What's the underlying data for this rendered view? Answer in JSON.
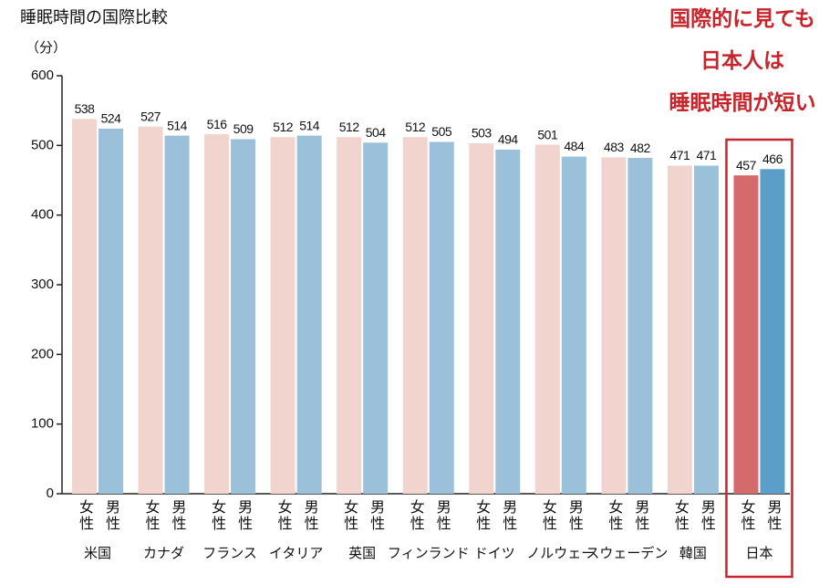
{
  "chart_data": {
    "type": "bar",
    "title": "睡眠時間の国際比較",
    "y_label": "（分）",
    "categories": [
      "米国",
      "カナダ",
      "フランス",
      "イタリア",
      "英国",
      "フィンランド",
      "ドイツ",
      "ノルウェー",
      "スウェーデン",
      "韓国",
      "日本"
    ],
    "series": [
      {
        "name": "女性",
        "color": "#f2d4cf",
        "colors": [
          "#f2d4cf",
          "#f2d4cf",
          "#f2d4cf",
          "#f2d4cf",
          "#f2d4cf",
          "#f2d4cf",
          "#f2d4cf",
          "#f2d4cf",
          "#f2d4cf",
          "#f2d4cf",
          "#d46a6c"
        ],
        "values": [
          538,
          527,
          516,
          512,
          512,
          512,
          503,
          501,
          483,
          471,
          457
        ]
      },
      {
        "name": "男性",
        "color": "#9bc0d9",
        "colors": [
          "#9bc0d9",
          "#9bc0d9",
          "#9bc0d9",
          "#9bc0d9",
          "#9bc0d9",
          "#9bc0d9",
          "#9bc0d9",
          "#9bc0d9",
          "#9bc0d9",
          "#9bc0d9",
          "#5b9ec9"
        ],
        "values": [
          524,
          514,
          509,
          514,
          504,
          505,
          494,
          484,
          482,
          471,
          466
        ]
      }
    ],
    "ylim": [
      0,
      600
    ],
    "yticks": [
      0,
      100,
      200,
      300,
      400,
      500,
      600
    ],
    "grid": false,
    "annotation": {
      "texts": [
        "国際的に見ても",
        "日本人は",
        "睡眠時間が短い"
      ],
      "color": "#c8242b"
    }
  }
}
